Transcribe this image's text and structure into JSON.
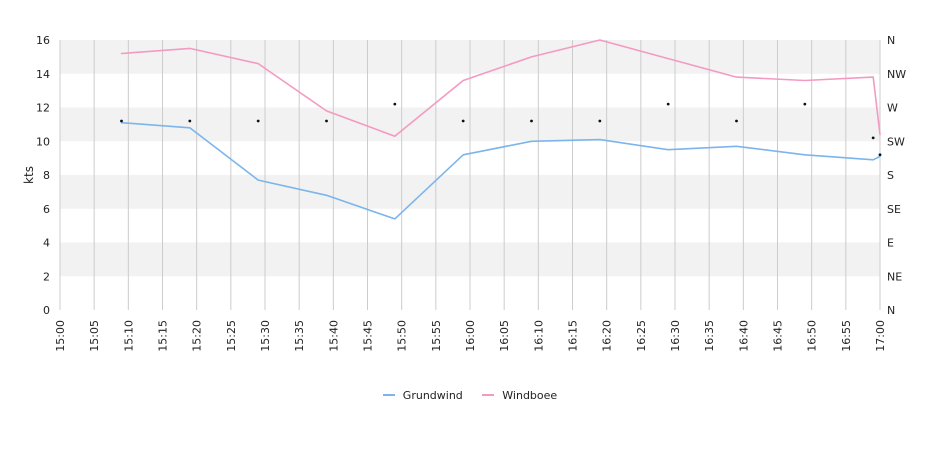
{
  "chart_data": {
    "type": "line",
    "ylabel": "kts",
    "ylim": [
      0,
      16
    ],
    "y_ticks": [
      "0",
      "2",
      "4",
      "6",
      "8",
      "10",
      "12",
      "14",
      "16"
    ],
    "y2_ticks": [
      "N",
      "NE",
      "E",
      "SE",
      "S",
      "SW",
      "W",
      "NW",
      "N"
    ],
    "x_ticks": [
      "15:00",
      "15:05",
      "15:10",
      "15:15",
      "15:20",
      "15:25",
      "15:30",
      "15:35",
      "15:40",
      "15:45",
      "15:50",
      "15:55",
      "16:00",
      "16:05",
      "16:10",
      "16:15",
      "16:20",
      "16:25",
      "16:30",
      "16:35",
      "16:40",
      "16:45",
      "16:50",
      "16:55",
      "17:00"
    ],
    "x": [
      "15:09",
      "15:19",
      "15:29",
      "15:39",
      "15:49",
      "15:59",
      "16:09",
      "16:19",
      "16:29",
      "16:39",
      "16:49",
      "16:59",
      "17:00"
    ],
    "series": [
      {
        "name": "Grundwind",
        "color": "#7cb5ec",
        "values": [
          11.1,
          10.8,
          7.7,
          6.8,
          5.4,
          9.2,
          10.0,
          10.1,
          9.5,
          9.7,
          9.2,
          8.9,
          9.1
        ]
      },
      {
        "name": "Windboee",
        "color": "#f49ac1",
        "values": [
          15.2,
          15.5,
          14.6,
          11.8,
          10.3,
          13.6,
          15.0,
          16.0,
          14.9,
          13.8,
          13.6,
          13.8,
          10.4
        ]
      }
    ],
    "direction_markers": {
      "x": [
        "15:09",
        "15:19",
        "15:29",
        "15:39",
        "15:49",
        "15:59",
        "16:09",
        "16:19",
        "16:29",
        "16:39",
        "16:49",
        "16:59",
        "17:00"
      ],
      "values": [
        11.2,
        11.2,
        11.2,
        11.2,
        12.2,
        11.2,
        11.2,
        11.2,
        12.2,
        11.2,
        12.2,
        10.2,
        9.2
      ]
    },
    "grid": true,
    "legend": "bottom"
  }
}
